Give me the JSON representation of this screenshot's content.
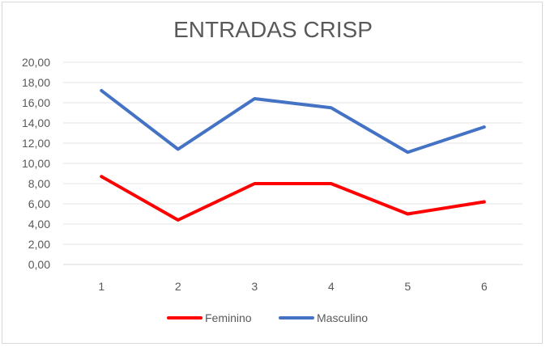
{
  "chart_data": {
    "type": "line",
    "title": "ENTRADAS CRISP",
    "xlabel": "",
    "ylabel": "",
    "categories": [
      "1",
      "2",
      "3",
      "4",
      "5",
      "6"
    ],
    "ylim": [
      0,
      20
    ],
    "yticks": [
      "0,00",
      "2,00",
      "4,00",
      "6,00",
      "8,00",
      "10,00",
      "12,00",
      "14,00",
      "16,00",
      "18,00",
      "20,00"
    ],
    "grid": true,
    "legend_position": "bottom",
    "series": [
      {
        "name": "Feminino",
        "color": "#ff0000",
        "values": [
          8.7,
          4.4,
          8.0,
          8.0,
          5.0,
          6.2
        ]
      },
      {
        "name": "Masculino",
        "color": "#4472c4",
        "values": [
          17.2,
          11.4,
          16.4,
          15.5,
          11.1,
          13.6
        ]
      }
    ]
  }
}
